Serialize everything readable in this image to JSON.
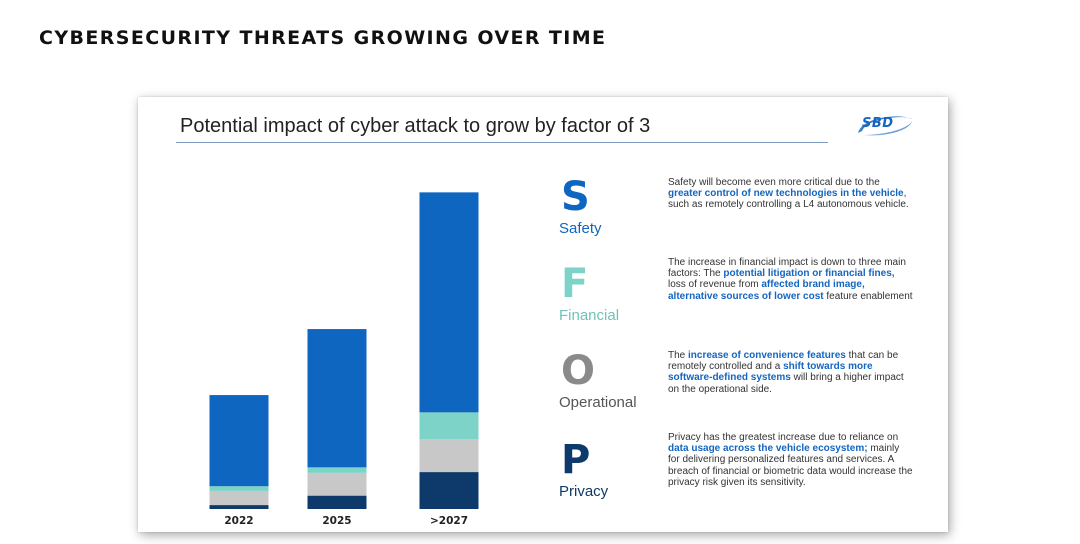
{
  "page_heading": "CYBERSECURITY THREATS GROWING OVER TIME",
  "slide": {
    "title": "Potential impact of cyber attack to grow by factor of 3",
    "logo_text": "SBD"
  },
  "colors": {
    "safety": "#0f66c1",
    "financial": "#7dd3c7",
    "operational": "#c8c8c8",
    "privacy": "#0e3a6b"
  },
  "chart_data": {
    "type": "bar",
    "stacked": true,
    "categories": [
      "2022",
      "2025",
      ">2027"
    ],
    "series": [
      {
        "name": "Privacy",
        "values": [
          0.5,
          1.7,
          4.7
        ]
      },
      {
        "name": "Operational",
        "values": [
          1.8,
          2.9,
          4.2
        ]
      },
      {
        "name": "Financial",
        "values": [
          0.6,
          0.7,
          3.4
        ]
      },
      {
        "name": "Safety",
        "values": [
          11.6,
          17.6,
          28.0
        ]
      }
    ],
    "ylim": [
      0,
      42
    ],
    "title": "",
    "xlabel": "",
    "ylabel": "",
    "grid": false
  },
  "categories": [
    {
      "letter": "S",
      "name": "Safety",
      "description": [
        {
          "text": "Safety will become even more critical due to the ",
          "bold": false
        },
        {
          "text": "greater control of new technologies in the vehicle",
          "bold": true
        },
        {
          "text": ", such as remotely controlling a L4 autonomous vehicle.",
          "bold": false
        }
      ]
    },
    {
      "letter": "F",
      "name": "Financial",
      "description": [
        {
          "text": "The increase in financial impact is down to three main factors: The ",
          "bold": false
        },
        {
          "text": "potential litigation or financial fines,",
          "bold": true
        },
        {
          "text": " loss of revenue from ",
          "bold": false
        },
        {
          "text": "affected brand image, alternative sources of lower cost",
          "bold": true
        },
        {
          "text": " feature enablement",
          "bold": false
        }
      ]
    },
    {
      "letter": "O",
      "name": "Operational",
      "description": [
        {
          "text": "The ",
          "bold": false
        },
        {
          "text": "increase of convenience features",
          "bold": true
        },
        {
          "text": " that can be remotely controlled and a ",
          "bold": false
        },
        {
          "text": "shift towards more software-defined systems",
          "bold": true
        },
        {
          "text": " will bring a higher impact on the operational side.",
          "bold": false
        }
      ]
    },
    {
      "letter": "P",
      "name": "Privacy",
      "description": [
        {
          "text": "Privacy has the greatest increase due to reliance on ",
          "bold": false
        },
        {
          "text": "data usage across the vehicle ecosystem;",
          "bold": true
        },
        {
          "text": " mainly for delivering personalized features and services. A breach of financial or biometric data would increase the privacy risk given its sensitivity.",
          "bold": false
        }
      ]
    }
  ]
}
